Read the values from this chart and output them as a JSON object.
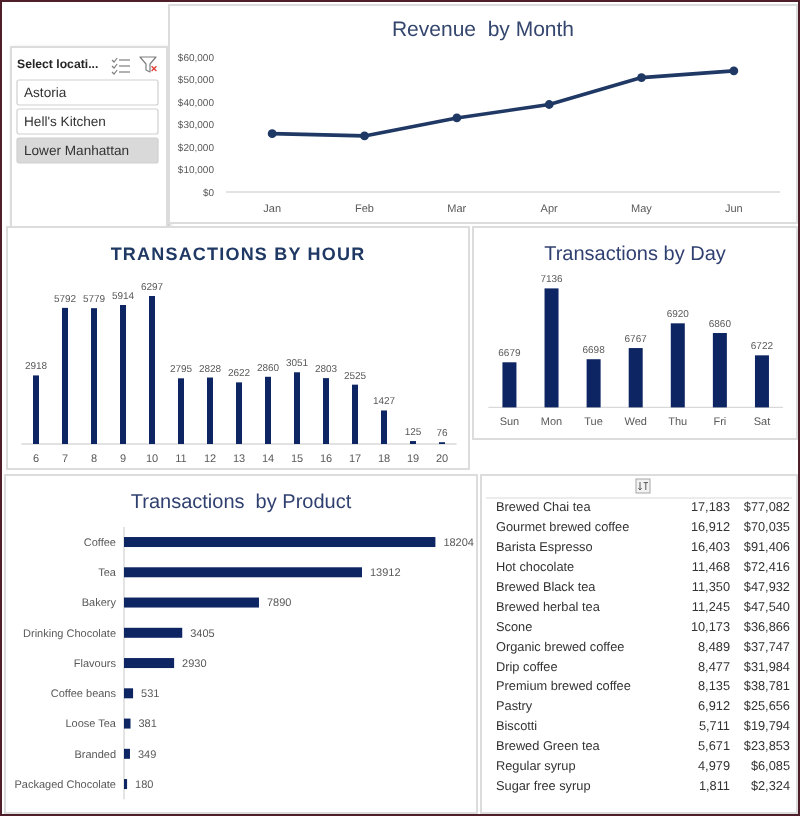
{
  "chart_data": [
    {
      "type": "other",
      "title": "Select locati...",
      "categories": [
        "Astoria",
        "Hell's Kitchen",
        "Lower Manhattan"
      ],
      "colors": [
        "#ffffff",
        "#ffffff",
        "#d9d9d9"
      ]
    },
    {
      "type": "line",
      "title": "Revenue  by Month",
      "categories": [
        "Jan",
        "Feb",
        "Mar",
        "Apr",
        "May",
        "Jun"
      ],
      "values": [
        26000,
        25000,
        33000,
        39000,
        51000,
        54000
      ],
      "color": "#1f3864",
      "ylim": [
        0,
        60000
      ],
      "yticks": [
        {
          "value": 0,
          "label": "$0"
        },
        {
          "value": 10000,
          "label": "$10,000"
        },
        {
          "value": 20000,
          "label": "$20,000"
        },
        {
          "value": 30000,
          "label": "$30,000"
        },
        {
          "value": 40000,
          "label": "$40,000"
        },
        {
          "value": 50000,
          "label": "$50,000"
        },
        {
          "value": 60000,
          "label": "$60,000"
        }
      ],
      "marker": "circle",
      "line_style": "solid"
    },
    {
      "type": "bar",
      "title": "TRANSACTIONS BY HOUR",
      "categories": [
        "6",
        "7",
        "8",
        "9",
        "10",
        "11",
        "12",
        "13",
        "14",
        "15",
        "16",
        "17",
        "18",
        "19",
        "20"
      ],
      "values": [
        2918,
        5792,
        5779,
        5914,
        6297,
        2795,
        2828,
        2622,
        2860,
        3051,
        2803,
        2525,
        1427,
        125,
        76
      ],
      "color": "#0d2562",
      "data_labels": true,
      "tick_labels": "x"
    },
    {
      "type": "bar",
      "title": "Transactions by Day",
      "categories": [
        "Sun",
        "Mon",
        "Tue",
        "Wed",
        "Thu",
        "Fri",
        "Sat"
      ],
      "values": [
        6679,
        7136,
        6698,
        6767,
        6920,
        6860,
        6722
      ],
      "color": "#0d2562",
      "ylim": [
        6400,
        7136
      ],
      "data_labels": true,
      "tick_labels": "x"
    },
    {
      "type": "bar",
      "orientation": "horizontal",
      "title": "Transactions  by Product",
      "categories": [
        "Coffee",
        "Tea",
        "Bakery",
        "Drinking Chocolate",
        "Flavours",
        "Coffee beans",
        "Loose Tea",
        "Branded",
        "Packaged Chocolate"
      ],
      "values": [
        18204,
        13912,
        7890,
        3405,
        2930,
        531,
        381,
        349,
        180
      ],
      "color": "#0d2562",
      "data_labels": true,
      "tick_labels": "y"
    },
    {
      "type": "other",
      "categories": [
        "Brewed Chai tea",
        "Gourmet brewed coffee",
        "Barista Espresso",
        "Hot chocolate",
        "Brewed Black tea",
        "Brewed herbal tea",
        "Scone",
        "Organic brewed coffee",
        "Drip coffee",
        "Premium brewed coffee",
        "Pastry",
        "Biscotti",
        "Brewed Green tea",
        "Regular syrup",
        "Sugar free syrup"
      ],
      "series": [
        {
          "values": [
            17183,
            16912,
            16403,
            11468,
            11350,
            11245,
            10173,
            8489,
            8477,
            8135,
            6912,
            5711,
            5671,
            4979,
            1811
          ],
          "value_labels": [
            "17,183",
            "16,912",
            "16,403",
            "11,468",
            "11,350",
            "11,245",
            "10,173",
            "8,489",
            "8,477",
            "8,135",
            "6,912",
            "5,711",
            "5,671",
            "4,979",
            "1,811"
          ]
        },
        {
          "values": [
            77082,
            70035,
            91406,
            72416,
            47932,
            47540,
            36866,
            37747,
            31984,
            38781,
            25656,
            19794,
            23853,
            6085,
            2324
          ],
          "value_labels": [
            "$77,082",
            "$70,035",
            "$91,406",
            "$72,416",
            "$47,932",
            "$47,540",
            "$36,866",
            "$37,747",
            "$31,984",
            "$38,781",
            "$25,656",
            "$19,794",
            "$23,853",
            "$6,085",
            "$2,324"
          ]
        }
      ]
    }
  ]
}
